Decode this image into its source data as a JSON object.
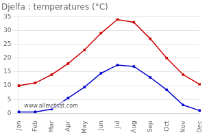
{
  "chart_data": {
    "type": "line",
    "title": "Djelfa : temperatures (°C)",
    "categories": [
      "Jan",
      "Feb",
      "Mar",
      "Apr",
      "May",
      "Jun",
      "Jul",
      "Aug",
      "Sep",
      "Oct",
      "Nov",
      "Dec"
    ],
    "series": [
      {
        "color": "#cc0000",
        "marker": "square",
        "values": [
          10,
          11,
          14,
          18,
          23,
          29,
          34,
          33,
          27,
          20,
          14,
          10.5
        ]
      },
      {
        "color": "#0000cc",
        "marker": "square",
        "values": [
          0.5,
          0.5,
          1.5,
          5.5,
          9.5,
          14.5,
          17.5,
          17,
          13,
          8.5,
          3,
          1
        ]
      }
    ],
    "ylim": [
      0,
      35
    ],
    "yticks": [
      0,
      5,
      10,
      15,
      20,
      25,
      30,
      35
    ],
    "grid": true,
    "annotation": "www.allmetsat.com"
  }
}
